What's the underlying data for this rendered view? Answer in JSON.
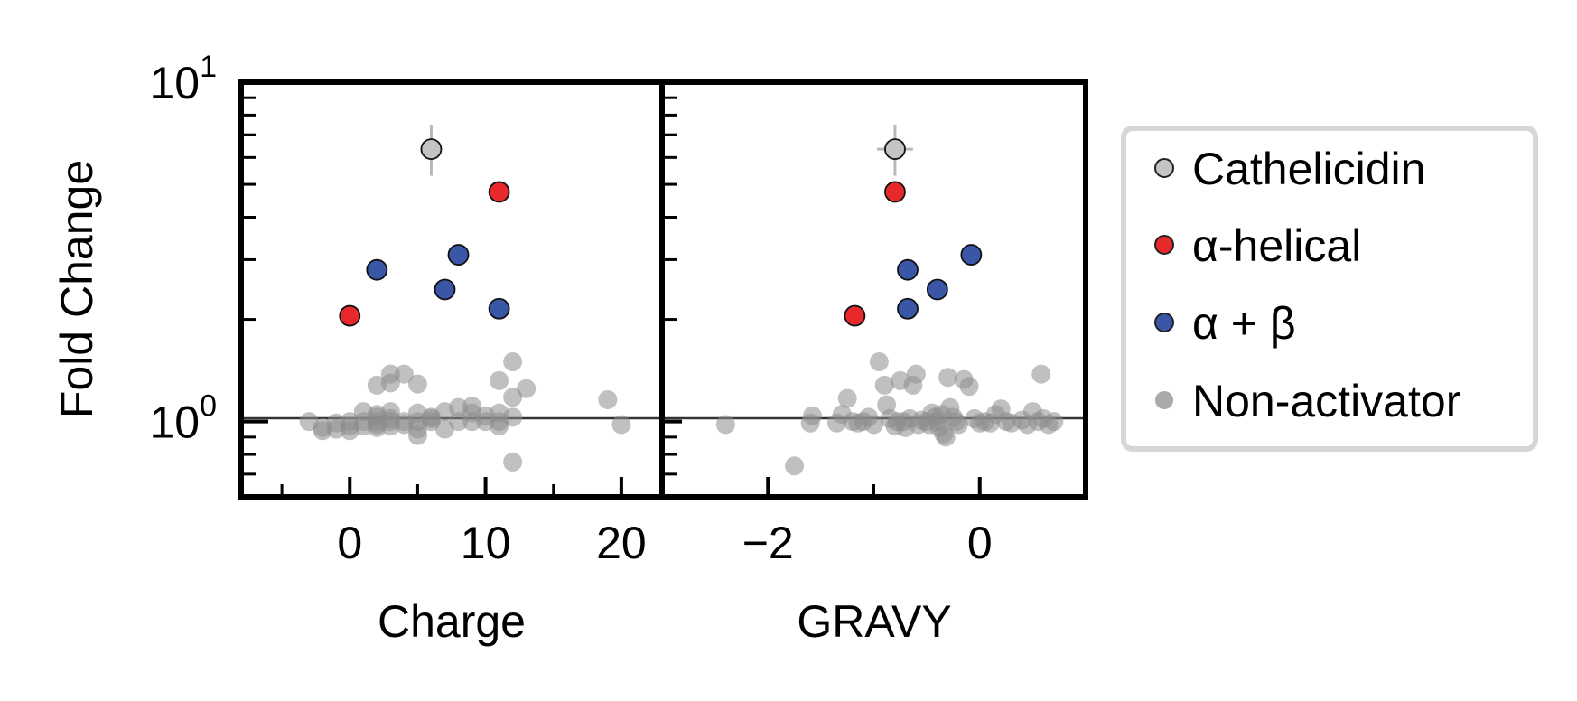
{
  "chart_data": {
    "type": "scatter",
    "ylabel": "Fold Change",
    "yscale": "log",
    "ylim": [
      0.6,
      10
    ],
    "yticks": [
      {
        "value": 1,
        "base": "10",
        "exp": "0"
      },
      {
        "value": 10,
        "base": "10",
        "exp": "1"
      }
    ],
    "reference_line_y": 1,
    "legend": {
      "position": "right",
      "entries": [
        {
          "label": "Cathelicidin",
          "color": "#c4c4c4",
          "edge": "#222222"
        },
        {
          "label": "α-helical",
          "color": "#e8292c",
          "edge": "#222222"
        },
        {
          "label": "α + β",
          "color": "#3a57a7",
          "edge": "#222222"
        },
        {
          "label": "Non-activator",
          "color": "#8c8c8c",
          "edge": "none",
          "alpha": 0.6
        }
      ]
    },
    "panels": [
      {
        "xlabel": "Charge",
        "xlim": [
          -8,
          23
        ],
        "xticks": [
          {
            "value": 0,
            "label": "0"
          },
          {
            "value": 10,
            "label": "10"
          },
          {
            "value": 20,
            "label": "20"
          }
        ],
        "minor_xticks": [
          -5,
          5,
          15
        ],
        "series": {
          "cathelicidin": [
            {
              "x": 6,
              "y": 6.35,
              "yerr_low": 5.3,
              "yerr_high": 7.5
            }
          ],
          "alpha_helical": [
            {
              "x": 11,
              "y": 4.75
            },
            {
              "x": 0,
              "y": 2.05
            }
          ],
          "alpha_beta": [
            {
              "x": 2,
              "y": 2.8
            },
            {
              "x": 8,
              "y": 3.1
            },
            {
              "x": 7,
              "y": 2.45
            },
            {
              "x": 11,
              "y": 2.15
            }
          ],
          "non_activator": [
            {
              "x": -3,
              "y": 1.0
            },
            {
              "x": -2,
              "y": 0.96
            },
            {
              "x": -2,
              "y": 0.94
            },
            {
              "x": -1,
              "y": 0.99
            },
            {
              "x": -1,
              "y": 0.95
            },
            {
              "x": 0,
              "y": 1.0
            },
            {
              "x": 0,
              "y": 0.97
            },
            {
              "x": 0,
              "y": 0.94
            },
            {
              "x": 1,
              "y": 1.0
            },
            {
              "x": 1,
              "y": 1.07
            },
            {
              "x": 1,
              "y": 0.97
            },
            {
              "x": 2,
              "y": 1.0
            },
            {
              "x": 2,
              "y": 1.03
            },
            {
              "x": 2,
              "y": 0.98
            },
            {
              "x": 2,
              "y": 1.05
            },
            {
              "x": 2,
              "y": 0.96
            },
            {
              "x": 2,
              "y": 1.28
            },
            {
              "x": 3,
              "y": 1.0
            },
            {
              "x": 3,
              "y": 1.02
            },
            {
              "x": 3,
              "y": 0.97
            },
            {
              "x": 3,
              "y": 1.07
            },
            {
              "x": 3,
              "y": 1.38
            },
            {
              "x": 3,
              "y": 1.3
            },
            {
              "x": 4,
              "y": 1.0
            },
            {
              "x": 4,
              "y": 0.98
            },
            {
              "x": 4,
              "y": 1.38
            },
            {
              "x": 5,
              "y": 1.0
            },
            {
              "x": 5,
              "y": 1.06
            },
            {
              "x": 5,
              "y": 0.95
            },
            {
              "x": 5,
              "y": 0.91
            },
            {
              "x": 5,
              "y": 1.29
            },
            {
              "x": 6,
              "y": 1.0
            },
            {
              "x": 6,
              "y": 1.02
            },
            {
              "x": 6,
              "y": 1.03
            },
            {
              "x": 7,
              "y": 1.07
            },
            {
              "x": 7,
              "y": 0.95
            },
            {
              "x": 8,
              "y": 1.0
            },
            {
              "x": 8,
              "y": 1.1
            },
            {
              "x": 9,
              "y": 1.0
            },
            {
              "x": 9,
              "y": 1.11
            },
            {
              "x": 9,
              "y": 1.06
            },
            {
              "x": 10,
              "y": 1.0
            },
            {
              "x": 10,
              "y": 1.04
            },
            {
              "x": 11,
              "y": 1.0
            },
            {
              "x": 11,
              "y": 1.06
            },
            {
              "x": 11,
              "y": 1.32
            },
            {
              "x": 11,
              "y": 0.97
            },
            {
              "x": 12,
              "y": 1.03
            },
            {
              "x": 12,
              "y": 1.18
            },
            {
              "x": 12,
              "y": 1.5
            },
            {
              "x": 12,
              "y": 0.76
            },
            {
              "x": 13,
              "y": 1.25
            },
            {
              "x": 19,
              "y": 1.16
            },
            {
              "x": 20,
              "y": 0.98
            }
          ]
        }
      },
      {
        "xlabel": "GRAVY",
        "xlim": [
          -3.0,
          1.0
        ],
        "xticks": [
          {
            "value": -2,
            "label": "−2"
          },
          {
            "value": 0,
            "label": "0"
          }
        ],
        "minor_xticks": [
          -1
        ],
        "series": {
          "cathelicidin": [
            {
              "x": -0.8,
              "y": 6.35,
              "xerr_low": -0.97,
              "xerr_high": -0.63,
              "yerr_low": 5.3,
              "yerr_high": 7.5
            }
          ],
          "alpha_helical": [
            {
              "x": -0.8,
              "y": 4.75
            },
            {
              "x": -1.18,
              "y": 2.05
            }
          ],
          "alpha_beta": [
            {
              "x": -0.68,
              "y": 2.8
            },
            {
              "x": -0.08,
              "y": 3.1
            },
            {
              "x": -0.4,
              "y": 2.45
            },
            {
              "x": -0.68,
              "y": 2.15
            }
          ],
          "non_activator": [
            {
              "x": -2.4,
              "y": 0.98
            },
            {
              "x": -1.75,
              "y": 0.74
            },
            {
              "x": -1.6,
              "y": 0.99
            },
            {
              "x": -1.58,
              "y": 1.04
            },
            {
              "x": -1.35,
              "y": 0.99
            },
            {
              "x": -1.3,
              "y": 1.05
            },
            {
              "x": -1.25,
              "y": 1.17
            },
            {
              "x": -1.2,
              "y": 1.0
            },
            {
              "x": -1.15,
              "y": 0.99
            },
            {
              "x": -1.1,
              "y": 1.0
            },
            {
              "x": -1.05,
              "y": 1.03
            },
            {
              "x": -1.0,
              "y": 0.98
            },
            {
              "x": -0.95,
              "y": 1.5
            },
            {
              "x": -0.9,
              "y": 1.28
            },
            {
              "x": -0.88,
              "y": 1.12
            },
            {
              "x": -0.85,
              "y": 1.02
            },
            {
              "x": -0.8,
              "y": 0.97
            },
            {
              "x": -0.78,
              "y": 1.0
            },
            {
              "x": -0.75,
              "y": 1.32
            },
            {
              "x": -0.72,
              "y": 1.0
            },
            {
              "x": -0.7,
              "y": 0.96
            },
            {
              "x": -0.66,
              "y": 1.02
            },
            {
              "x": -0.63,
              "y": 1.28
            },
            {
              "x": -0.6,
              "y": 1.38
            },
            {
              "x": -0.58,
              "y": 0.98
            },
            {
              "x": -0.55,
              "y": 1.01
            },
            {
              "x": -0.5,
              "y": 1.0
            },
            {
              "x": -0.48,
              "y": 0.98
            },
            {
              "x": -0.45,
              "y": 1.06
            },
            {
              "x": -0.42,
              "y": 1.03
            },
            {
              "x": -0.4,
              "y": 1.0
            },
            {
              "x": -0.38,
              "y": 0.96
            },
            {
              "x": -0.36,
              "y": 1.05
            },
            {
              "x": -0.34,
              "y": 0.92
            },
            {
              "x": -0.32,
              "y": 0.9
            },
            {
              "x": -0.3,
              "y": 1.35
            },
            {
              "x": -0.28,
              "y": 1.1
            },
            {
              "x": -0.25,
              "y": 1.03
            },
            {
              "x": -0.22,
              "y": 1.0
            },
            {
              "x": -0.2,
              "y": 0.98
            },
            {
              "x": -0.15,
              "y": 1.33
            },
            {
              "x": -0.1,
              "y": 1.27
            },
            {
              "x": -0.05,
              "y": 1.02
            },
            {
              "x": 0.0,
              "y": 0.99
            },
            {
              "x": 0.05,
              "y": 1.0
            },
            {
              "x": 0.1,
              "y": 0.99
            },
            {
              "x": 0.15,
              "y": 1.05
            },
            {
              "x": 0.2,
              "y": 1.09
            },
            {
              "x": 0.25,
              "y": 1.0
            },
            {
              "x": 0.3,
              "y": 0.99
            },
            {
              "x": 0.4,
              "y": 1.01
            },
            {
              "x": 0.45,
              "y": 0.98
            },
            {
              "x": 0.5,
              "y": 1.07
            },
            {
              "x": 0.55,
              "y": 1.0
            },
            {
              "x": 0.58,
              "y": 1.38
            },
            {
              "x": 0.6,
              "y": 1.02
            },
            {
              "x": 0.65,
              "y": 0.98
            },
            {
              "x": 0.7,
              "y": 1.0
            }
          ]
        }
      }
    ]
  }
}
